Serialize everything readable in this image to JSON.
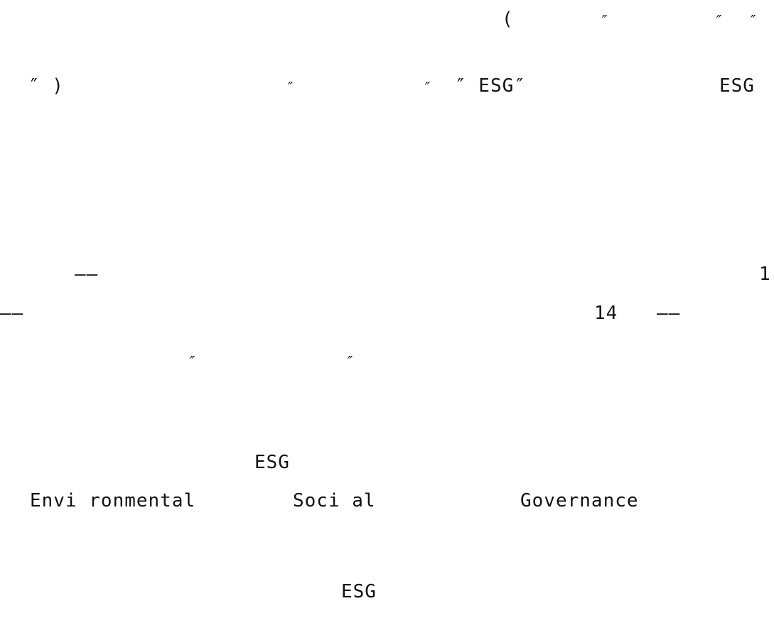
{
  "document": {
    "lines": [
      {
        "fragments": [
          {
            "text": "("
          },
          {
            "text": "″"
          },
          {
            "text": "″"
          },
          {
            "text": "″"
          }
        ]
      },
      {
        "fragments": [
          {
            "text": "″ )"
          },
          {
            "text": "″"
          },
          {
            "text": "″"
          },
          {
            "text": "″ ESG″"
          },
          {
            "text": "ESG"
          }
        ]
      },
      {
        "fragments": [
          {
            "text": "——"
          },
          {
            "text": "1"
          }
        ]
      },
      {
        "fragments": [
          {
            "text": "——"
          },
          {
            "text": "14"
          },
          {
            "text": "——"
          }
        ]
      },
      {
        "fragments": [
          {
            "text": "″"
          },
          {
            "text": "″"
          }
        ]
      },
      {
        "fragments": [
          {
            "text": "ESG"
          }
        ]
      },
      {
        "fragments": [
          {
            "text": "Envi ronmental"
          },
          {
            "text": "Soci al"
          },
          {
            "text": "Governance"
          }
        ]
      },
      {
        "fragments": [
          {
            "text": "ESG"
          }
        ]
      }
    ]
  }
}
